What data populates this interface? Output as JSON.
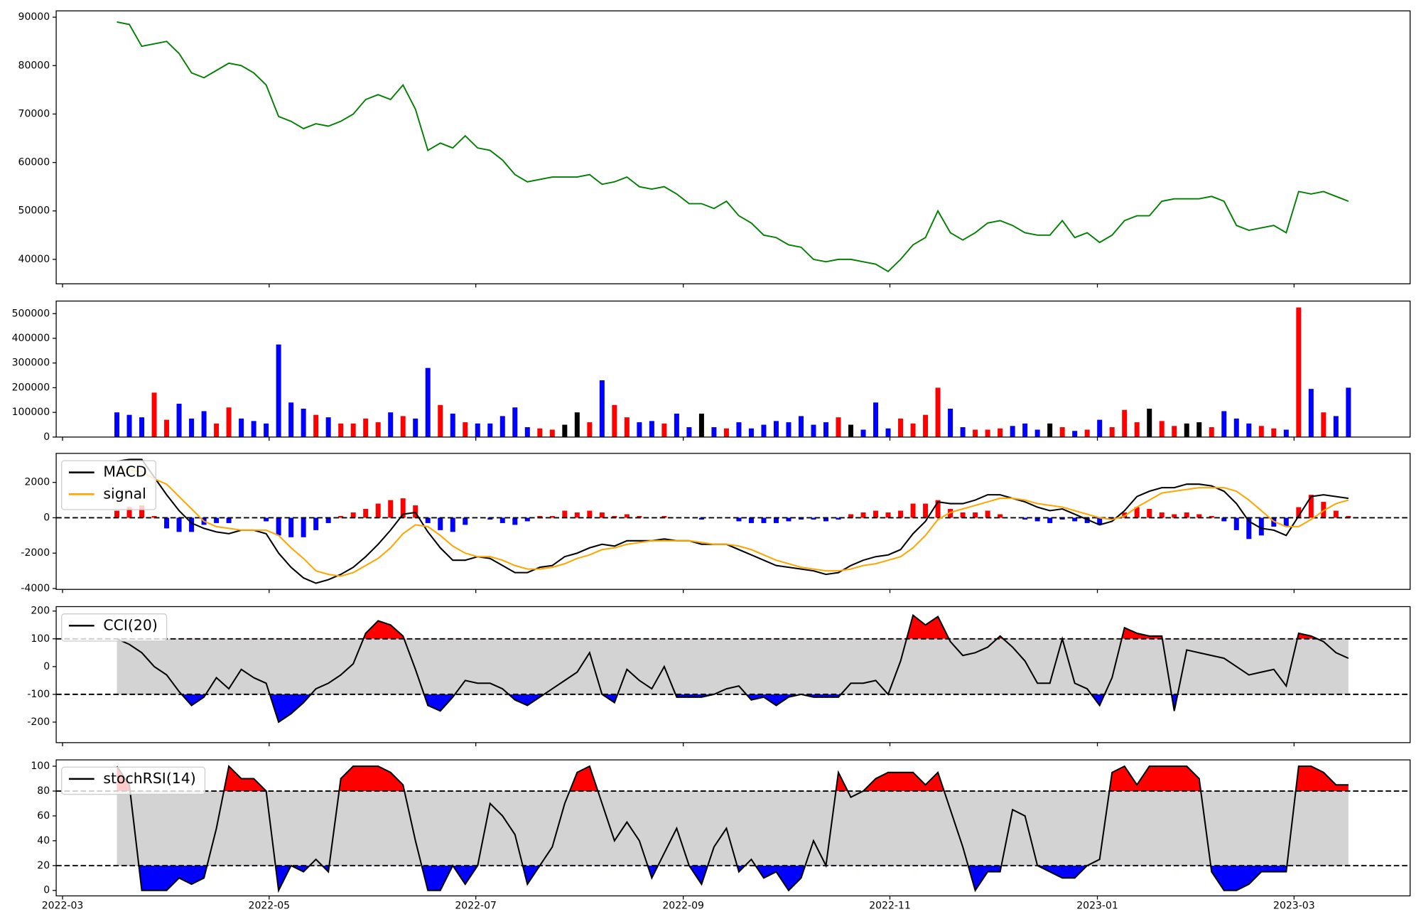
{
  "chart_data": [
    {
      "type": "line",
      "color": "green",
      "values": [
        89000,
        88500,
        84000,
        84500,
        85000,
        82500,
        78500,
        77500,
        79000,
        80500,
        80000,
        78500,
        76000,
        69500,
        68500,
        67000,
        68000,
        67500,
        68500,
        70000,
        73000,
        74000,
        73000,
        76000,
        71000,
        62500,
        64000,
        63000,
        65500,
        63000,
        62500,
        60500,
        57500,
        56000,
        56500,
        57000,
        57000,
        57000,
        57500,
        55500,
        56000,
        57000,
        55000,
        54500,
        55000,
        53500,
        51500,
        51500,
        50500,
        52000,
        49000,
        47500,
        45000,
        44500,
        43000,
        42500,
        40000,
        39500,
        40000,
        40000,
        39500,
        39000,
        37500,
        40000,
        43000,
        44500,
        50000,
        45500,
        44000,
        45500,
        47500,
        48000,
        47000,
        45500,
        45000,
        45000,
        48000,
        44500,
        45500,
        43500,
        45000,
        48000,
        49000,
        49000,
        52000,
        52500,
        52500,
        52500,
        53000,
        52000,
        47000,
        46000,
        46500,
        47000,
        45500,
        54000,
        53500,
        54000,
        53000,
        52000
      ],
      "xlim": [
        -4.88,
        103.96
      ],
      "ylim": [
        34950,
        91300
      ],
      "yticks": [
        40000,
        50000,
        60000,
        70000,
        80000,
        90000
      ]
    },
    {
      "type": "volume",
      "up_color": "red",
      "down_color": "blue",
      "flat_color": "black",
      "values": [
        100000,
        90000,
        80000,
        180000,
        70000,
        135000,
        75000,
        105000,
        55000,
        120000,
        75000,
        65000,
        55000,
        375000,
        140000,
        115000,
        90000,
        80000,
        55000,
        55000,
        75000,
        60000,
        100000,
        85000,
        75000,
        280000,
        130000,
        95000,
        60000,
        55000,
        55000,
        85000,
        120000,
        40000,
        35000,
        30000,
        50000,
        100000,
        60000,
        230000,
        130000,
        80000,
        60000,
        65000,
        55000,
        95000,
        40000,
        95000,
        40000,
        35000,
        60000,
        35000,
        50000,
        65000,
        60000,
        85000,
        50000,
        60000,
        80000,
        50000,
        30000,
        140000,
        35000,
        75000,
        55000,
        90000,
        200000,
        115000,
        40000,
        30000,
        30000,
        35000,
        45000,
        55000,
        30000,
        55000,
        40000,
        25000,
        30000,
        70000,
        40000,
        110000,
        60000,
        115000,
        65000,
        45000,
        55000,
        60000,
        40000,
        105000,
        75000,
        55000,
        45000,
        35000,
        30000,
        525000,
        195000,
        100000,
        85000,
        200000
      ],
      "xlim": [
        -4.88,
        103.96
      ],
      "ylim": [
        0,
        551000
      ],
      "yticks": [
        0,
        100000,
        200000,
        300000,
        400000,
        500000
      ]
    },
    {
      "type": "macd",
      "series": [
        {
          "name": "MACD",
          "color": "black",
          "values": [
            3200,
            3300,
            3300,
            2300,
            1300,
            400,
            -300,
            -600,
            -800,
            -900,
            -700,
            -700,
            -900,
            -2000,
            -2800,
            -3400,
            -3700,
            -3500,
            -3200,
            -2800,
            -2200,
            -1500,
            -700,
            200,
            300,
            -800,
            -1700,
            -2400,
            -2400,
            -2200,
            -2300,
            -2700,
            -3100,
            -3100,
            -2800,
            -2700,
            -2200,
            -2000,
            -1700,
            -1500,
            -1600,
            -1300,
            -1300,
            -1300,
            -1200,
            -1300,
            -1300,
            -1500,
            -1500,
            -1500,
            -1800,
            -2100,
            -2400,
            -2700,
            -2800,
            -2900,
            -3000,
            -3200,
            -3100,
            -2700,
            -2400,
            -2200,
            -2100,
            -1800,
            -900,
            -200,
            900,
            800,
            800,
            1000,
            1300,
            1300,
            1100,
            900,
            600,
            400,
            500,
            200,
            -100,
            -400,
            -200,
            400,
            1200,
            1500,
            1700,
            1700,
            1900,
            1900,
            1800,
            1500,
            800,
            -200,
            -600,
            -700,
            -1000,
            100,
            1200,
            1300,
            1200,
            1100
          ]
        },
        {
          "name": "signal",
          "color": "orange",
          "values": [
            2800,
            2700,
            2600,
            2200,
            1900,
            1200,
            500,
            -200,
            -500,
            -600,
            -700,
            -700,
            -700,
            -1000,
            -1700,
            -2300,
            -3000,
            -3200,
            -3300,
            -3100,
            -2700,
            -2300,
            -1700,
            -900,
            -400,
            -500,
            -1000,
            -1600,
            -2000,
            -2200,
            -2200,
            -2400,
            -2700,
            -2900,
            -2900,
            -2800,
            -2600,
            -2300,
            -2100,
            -1800,
            -1700,
            -1500,
            -1400,
            -1300,
            -1300,
            -1300,
            -1300,
            -1400,
            -1500,
            -1500,
            -1600,
            -1800,
            -2100,
            -2400,
            -2600,
            -2800,
            -2900,
            -3000,
            -3000,
            -2900,
            -2700,
            -2600,
            -2400,
            -2200,
            -1700,
            -1000,
            -100,
            300,
            500,
            700,
            900,
            1100,
            1100,
            1000,
            800,
            700,
            600,
            400,
            200,
            0,
            -100,
            100,
            600,
            1000,
            1400,
            1500,
            1600,
            1700,
            1700,
            1700,
            1500,
            1000,
            400,
            -200,
            -500,
            -500,
            -100,
            400,
            800,
            1000
          ]
        }
      ],
      "histogram": {
        "positive_color": "red",
        "negative_color": "blue",
        "values": [
          400,
          600,
          700,
          100,
          -600,
          -800,
          -800,
          -400,
          -300,
          -300,
          0,
          0,
          -200,
          -1000,
          -1100,
          -1100,
          -700,
          -300,
          100,
          300,
          500,
          800,
          1000,
          1100,
          700,
          -300,
          -700,
          -800,
          -400,
          0,
          -100,
          -300,
          -400,
          -200,
          100,
          100,
          400,
          300,
          400,
          300,
          100,
          200,
          100,
          0,
          100,
          0,
          0,
          -100,
          0,
          0,
          -200,
          -300,
          -300,
          -300,
          -200,
          -100,
          -100,
          -200,
          -100,
          200,
          300,
          400,
          300,
          400,
          800,
          800,
          1000,
          500,
          300,
          300,
          400,
          200,
          0,
          -100,
          -200,
          -300,
          -100,
          -200,
          -300,
          -400,
          -100,
          300,
          600,
          500,
          300,
          200,
          300,
          200,
          100,
          -200,
          -700,
          -1200,
          -1000,
          -500,
          -500,
          600,
          1300,
          900,
          400,
          100
        ]
      },
      "reference_line": 0,
      "xlim": [
        -4.88,
        103.96
      ],
      "ylim": [
        -4050,
        3640
      ],
      "yticks": [
        -4000,
        -2000,
        0,
        2000
      ]
    },
    {
      "type": "band",
      "band": [
        -100,
        100
      ],
      "band_color": "lightgray",
      "above_color": "red",
      "below_color": "blue",
      "series": [
        {
          "name": "CCI(20)",
          "color": "black",
          "values": [
            100,
            80,
            50,
            0,
            -30,
            -90,
            -140,
            -110,
            -40,
            -80,
            -10,
            -40,
            -60,
            -200,
            -170,
            -130,
            -80,
            -60,
            -30,
            10,
            120,
            165,
            150,
            110,
            -10,
            -140,
            -160,
            -110,
            -50,
            -60,
            -60,
            -80,
            -120,
            -140,
            -110,
            -80,
            -50,
            -20,
            50,
            -100,
            -130,
            -10,
            -50,
            -80,
            0,
            -110,
            -110,
            -110,
            -100,
            -80,
            -70,
            -120,
            -110,
            -140,
            -110,
            -100,
            -110,
            -110,
            -110,
            -60,
            -60,
            -50,
            -100,
            20,
            185,
            150,
            180,
            90,
            40,
            50,
            70,
            110,
            70,
            20,
            -60,
            -60,
            100,
            -60,
            -80,
            -140,
            -40,
            140,
            120,
            110,
            110,
            -160,
            60,
            50,
            40,
            30,
            0,
            -30,
            -20,
            -10,
            -70,
            120,
            110,
            90,
            50,
            30
          ]
        }
      ],
      "xlim": [
        -4.88,
        103.96
      ],
      "ylim": [
        -274,
        216
      ],
      "yticks": [
        -200,
        -100,
        0,
        100,
        200
      ]
    },
    {
      "type": "band",
      "band": [
        20,
        80
      ],
      "band_color": "lightgray",
      "above_color": "red",
      "below_color": "blue",
      "series": [
        {
          "name": "stochRSI(14)",
          "color": "black",
          "values": [
            100,
            85,
            0,
            0,
            0,
            10,
            5,
            10,
            50,
            100,
            90,
            90,
            80,
            0,
            20,
            15,
            25,
            15,
            90,
            100,
            100,
            100,
            95,
            85,
            40,
            0,
            0,
            20,
            5,
            20,
            70,
            60,
            45,
            5,
            20,
            35,
            70,
            95,
            100,
            70,
            40,
            55,
            40,
            10,
            30,
            50,
            20,
            5,
            35,
            50,
            15,
            25,
            10,
            15,
            0,
            10,
            40,
            20,
            95,
            75,
            80,
            90,
            95,
            95,
            95,
            85,
            95,
            65,
            35,
            0,
            15,
            15,
            65,
            60,
            20,
            15,
            10,
            10,
            20,
            25,
            95,
            100,
            85,
            100,
            100,
            100,
            100,
            90,
            15,
            0,
            0,
            5,
            15,
            15,
            15,
            100,
            100,
            95,
            85,
            85
          ]
        }
      ],
      "xlim": [
        -4.88,
        103.96
      ],
      "ylim": [
        -4.4,
        105.1
      ],
      "yticks": [
        0,
        20,
        40,
        60,
        80,
        100
      ],
      "xticks": [
        {
          "value": -4.37,
          "label": "2022-03"
        },
        {
          "value": 12.24,
          "label": "2022-05"
        },
        {
          "value": 28.85,
          "label": "2022-07"
        },
        {
          "value": 45.53,
          "label": "2022-09"
        },
        {
          "value": 62.14,
          "label": "2022-11"
        },
        {
          "value": 78.82,
          "label": "2023-01"
        },
        {
          "value": 94.63,
          "label": "2023-03"
        }
      ]
    }
  ]
}
